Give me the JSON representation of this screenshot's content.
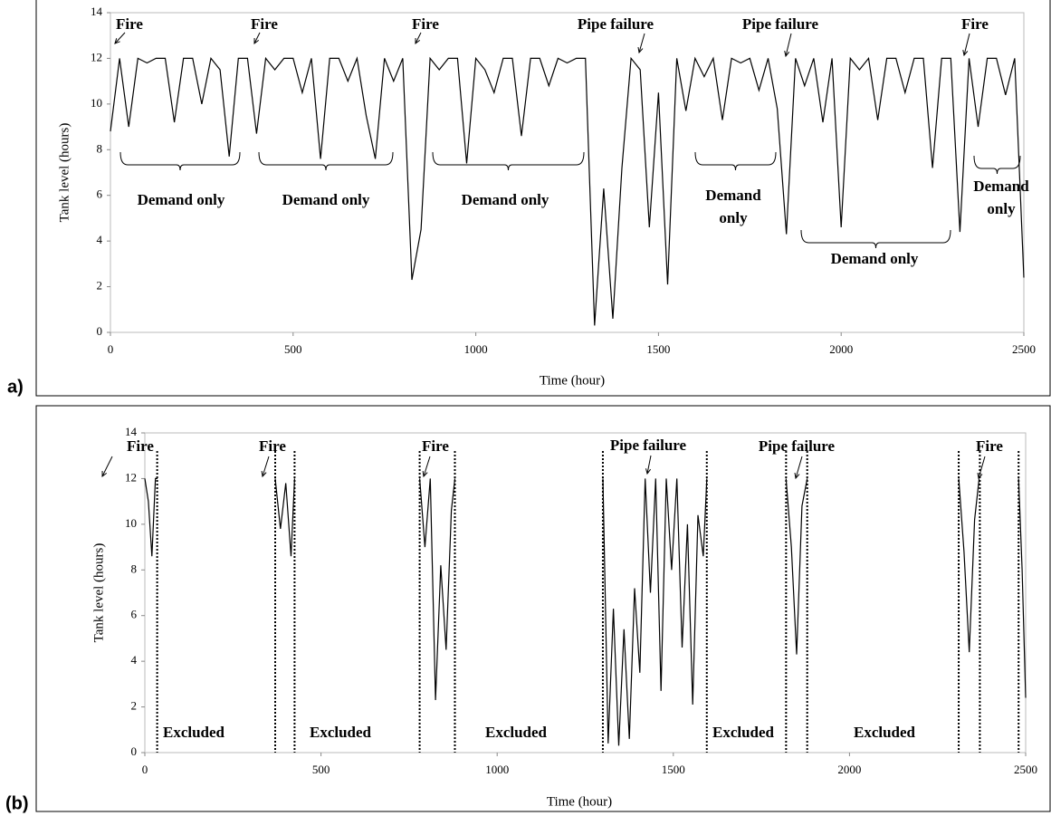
{
  "chart_data": [
    {
      "type": "line",
      "panel_label": "a)",
      "x_label": "Time (hour)",
      "y_label": "Tank level (hours)",
      "xlim": [
        0,
        2500
      ],
      "xticks": [
        0,
        500,
        1000,
        1500,
        2000,
        2500
      ],
      "ylim": [
        0,
        14
      ],
      "yticks": [
        0,
        2,
        4,
        6,
        8,
        10,
        12,
        14
      ],
      "color": "#000000",
      "annotations": [
        "Fire",
        "Fire",
        "Fire",
        "Pipe failure",
        "Pipe failure",
        "Fire",
        "Demand only",
        "Demand only",
        "Demand only",
        "Demand",
        "only",
        "Demand only",
        "Demand",
        "only"
      ],
      "x": [
        0,
        25,
        50,
        75,
        100,
        125,
        150,
        175,
        200,
        225,
        250,
        275,
        300,
        325,
        350,
        375,
        400,
        425,
        450,
        475,
        500,
        525,
        550,
        575,
        600,
        625,
        650,
        675,
        700,
        725,
        750,
        775,
        800,
        825,
        850,
        875,
        900,
        925,
        950,
        975,
        1000,
        1025,
        1050,
        1075,
        1100,
        1125,
        1150,
        1175,
        1200,
        1225,
        1250,
        1275,
        1300,
        1325,
        1350,
        1375,
        1400,
        1425,
        1450,
        1475,
        1500,
        1525,
        1550,
        1575,
        1600,
        1625,
        1650,
        1675,
        1700,
        1725,
        1750,
        1775,
        1800,
        1825,
        1850,
        1875,
        1900,
        1925,
        1950,
        1975,
        2000,
        2025,
        2050,
        2075,
        2100,
        2125,
        2150,
        2175,
        2200,
        2225,
        2250,
        2275,
        2300,
        2325,
        2350,
        2375,
        2400,
        2425,
        2450,
        2475,
        2500
      ],
      "values": [
        8.8,
        12,
        9,
        12,
        11.8,
        12,
        12,
        9.2,
        12,
        12,
        10,
        12,
        11.5,
        7.7,
        12,
        12,
        8.7,
        12,
        11.5,
        12,
        12,
        10.5,
        12,
        7.6,
        12,
        12,
        11,
        12,
        9.5,
        7.6,
        12,
        11,
        12,
        2.3,
        4.5,
        12,
        11.5,
        12,
        12,
        7.4,
        12,
        11.5,
        10.5,
        12,
        12,
        8.6,
        12,
        12,
        10.8,
        12,
        11.8,
        12,
        12,
        0.3,
        6.3,
        0.6,
        7.2,
        12,
        11.5,
        4.6,
        10.5,
        2.1,
        12,
        9.7,
        12,
        11.2,
        12,
        9.3,
        12,
        11.8,
        12,
        10.6,
        12,
        9.8,
        4.3,
        12,
        10.8,
        12,
        9.2,
        12,
        4.6,
        12,
        11.5,
        12,
        9.3,
        12,
        12,
        10.5,
        12,
        12,
        7.2,
        12,
        12,
        4.4,
        12,
        9,
        12,
        12,
        10.4,
        12,
        2.4
      ]
    },
    {
      "type": "line",
      "panel_label": "(b)",
      "x_label": "Time (hour)",
      "y_label": "Tank level (hours)",
      "xlim": [
        0,
        2500
      ],
      "xticks": [
        0,
        500,
        1000,
        1500,
        2000,
        2500
      ],
      "ylim": [
        0,
        14
      ],
      "yticks": [
        0,
        2,
        4,
        6,
        8,
        10,
        12,
        14
      ],
      "color": "#000000",
      "annotations": [
        "Fire",
        "Fire",
        "Fire",
        "Pipe failure",
        "Pipe failure",
        "Fire",
        "Excluded",
        "Excluded",
        "Excluded",
        "Excluded",
        "Excluded"
      ],
      "boundaries": [
        35,
        370,
        425,
        780,
        880,
        1300,
        1595,
        1820,
        1880,
        2310,
        2370,
        2480
      ],
      "x": [
        0,
        10,
        20,
        30,
        36,
        200,
        370,
        385,
        400,
        415,
        425,
        600,
        780,
        795,
        810,
        825,
        840,
        855,
        870,
        880,
        1100,
        1300,
        1315,
        1330,
        1345,
        1360,
        1375,
        1390,
        1405,
        1420,
        1435,
        1450,
        1465,
        1480,
        1495,
        1510,
        1525,
        1540,
        1555,
        1570,
        1585,
        1595,
        1700,
        1820,
        1835,
        1850,
        1865,
        1880,
        2100,
        2310,
        2325,
        2340,
        2355,
        2368,
        2420,
        2480,
        2490,
        2500
      ],
      "values": [
        12,
        11,
        8.6,
        12,
        12,
        null,
        12,
        9.8,
        11.8,
        8.6,
        12,
        null,
        12,
        9,
        12,
        2.3,
        8.2,
        4.5,
        10.6,
        12,
        null,
        12,
        0.4,
        6.3,
        0.3,
        5.4,
        0.6,
        7.2,
        3.5,
        12,
        7,
        12,
        2.7,
        12,
        8,
        12,
        4.6,
        10,
        2.1,
        10.4,
        8.6,
        12,
        null,
        12,
        9,
        4.3,
        10.8,
        12,
        null,
        12,
        8.8,
        4.4,
        10.2,
        12,
        null,
        12,
        8,
        2.4
      ]
    }
  ]
}
